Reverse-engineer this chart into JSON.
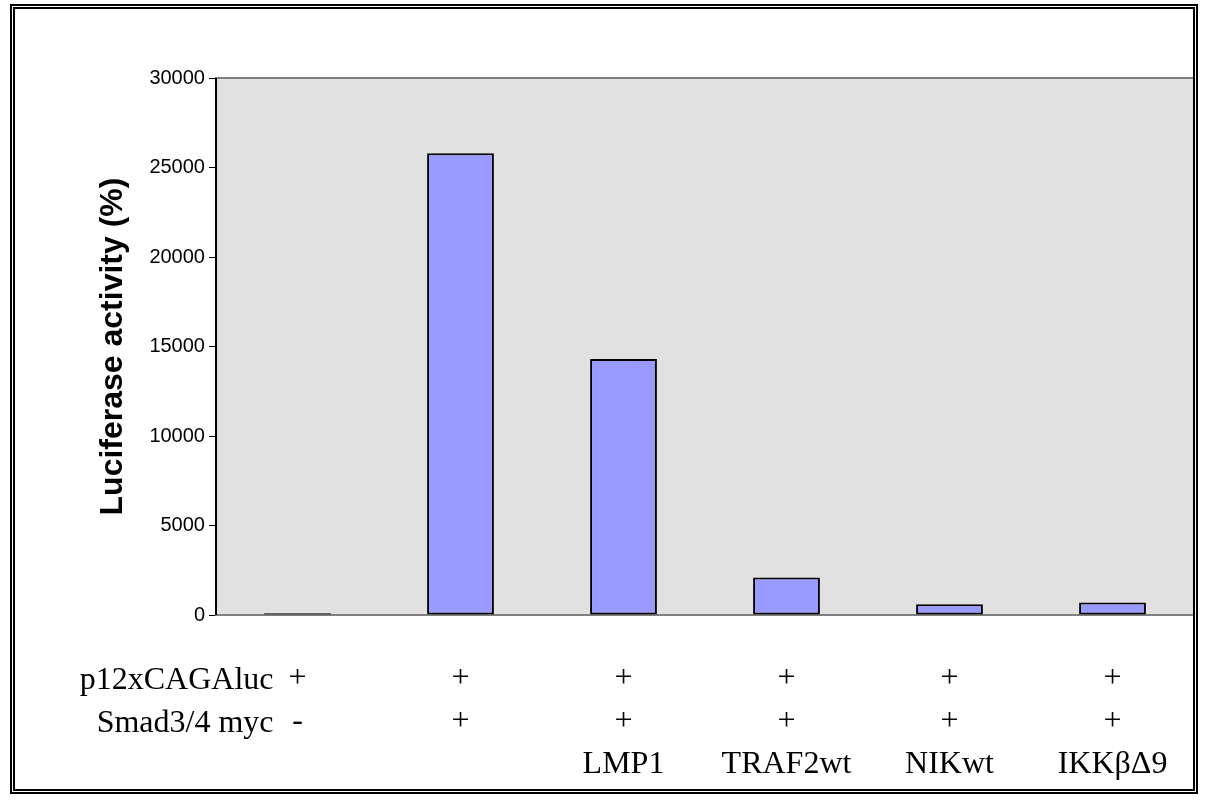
{
  "chart_data": {
    "type": "bar",
    "ylabel": "Luciferase activity (%)",
    "categories": [
      "+\n-",
      "+\n+",
      "+\n+\nLMP1",
      "+\n+\nTRAF2wt",
      "+\n+\nNIKwt",
      "+\n+\nIKKβΔ9"
    ],
    "values": [
      100,
      25800,
      14300,
      2100,
      600,
      700
    ],
    "colors": [
      "#000000",
      "#9999ff",
      "#9999ff",
      "#9999ff",
      "#9999ff",
      "#9999ff"
    ],
    "ylim": [
      0,
      30000
    ],
    "yticks": [
      0,
      5000,
      10000,
      15000,
      20000,
      25000,
      30000
    ],
    "annotations": [
      "p12xCAGAluc",
      "Smad3/4 myc"
    ],
    "legend": false
  }
}
